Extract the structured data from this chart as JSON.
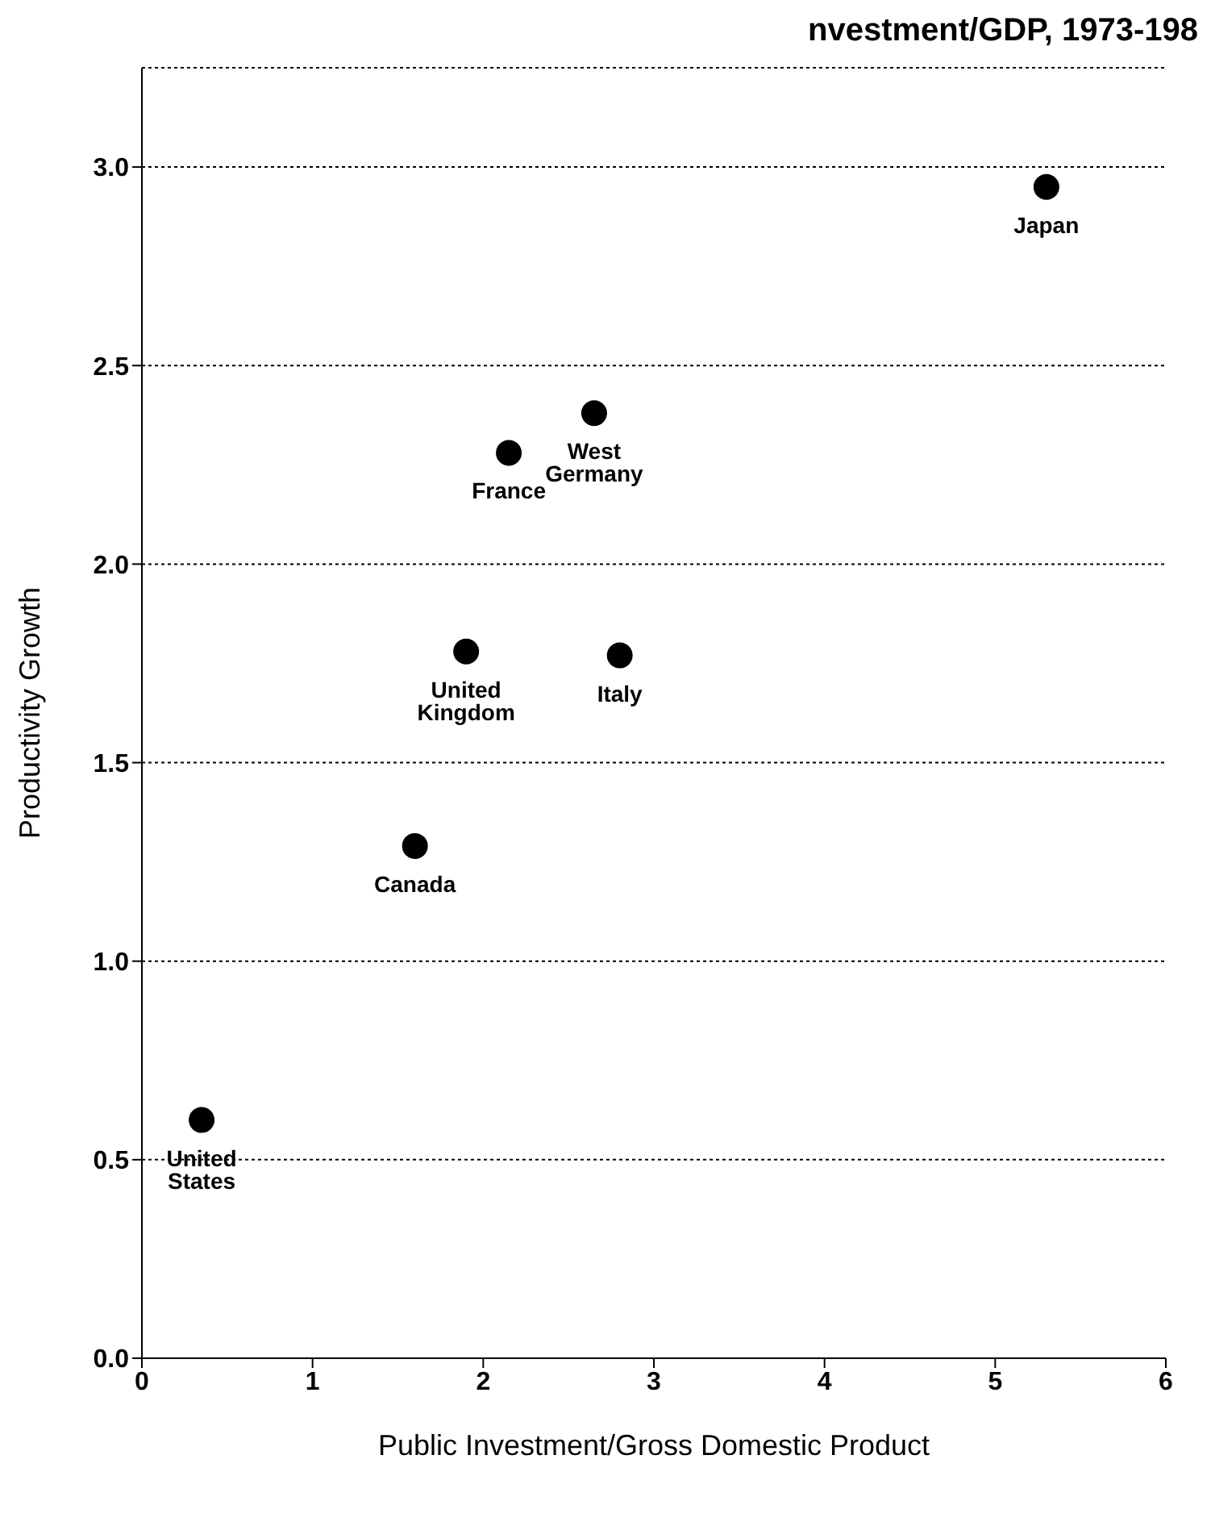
{
  "chart_data": {
    "type": "scatter",
    "title": "nvestment/GDP, 1973-198",
    "xlabel": "Public Investment/Gross Domestic Product",
    "ylabel": "Productivity Growth",
    "x": [
      5.3,
      2.65,
      2.15,
      1.9,
      2.8,
      1.6,
      0.35
    ],
    "values": [
      2.95,
      2.38,
      2.28,
      1.78,
      1.77,
      1.29,
      0.6
    ],
    "value_labels": [
      "Japan",
      "West Germany",
      "France",
      "United Kingdom",
      "Italy",
      "Canada",
      "United States"
    ],
    "color": "#000000",
    "marker": "circle",
    "xlim": [
      0,
      6
    ],
    "xticks": [
      0,
      1,
      2,
      3,
      4,
      5,
      6
    ],
    "ylim": [
      0,
      3.25
    ],
    "yticks": [
      {
        "value": 0,
        "label": "0.0"
      },
      {
        "value": 0.5,
        "label": "0.5"
      },
      {
        "value": 1,
        "label": "1.0"
      },
      {
        "value": 1.5,
        "label": "1.5"
      },
      {
        "value": 2,
        "label": "2.0"
      },
      {
        "value": 2.5,
        "label": "2.5"
      },
      {
        "value": 3,
        "label": "3.0"
      }
    ],
    "grid": "y"
  }
}
